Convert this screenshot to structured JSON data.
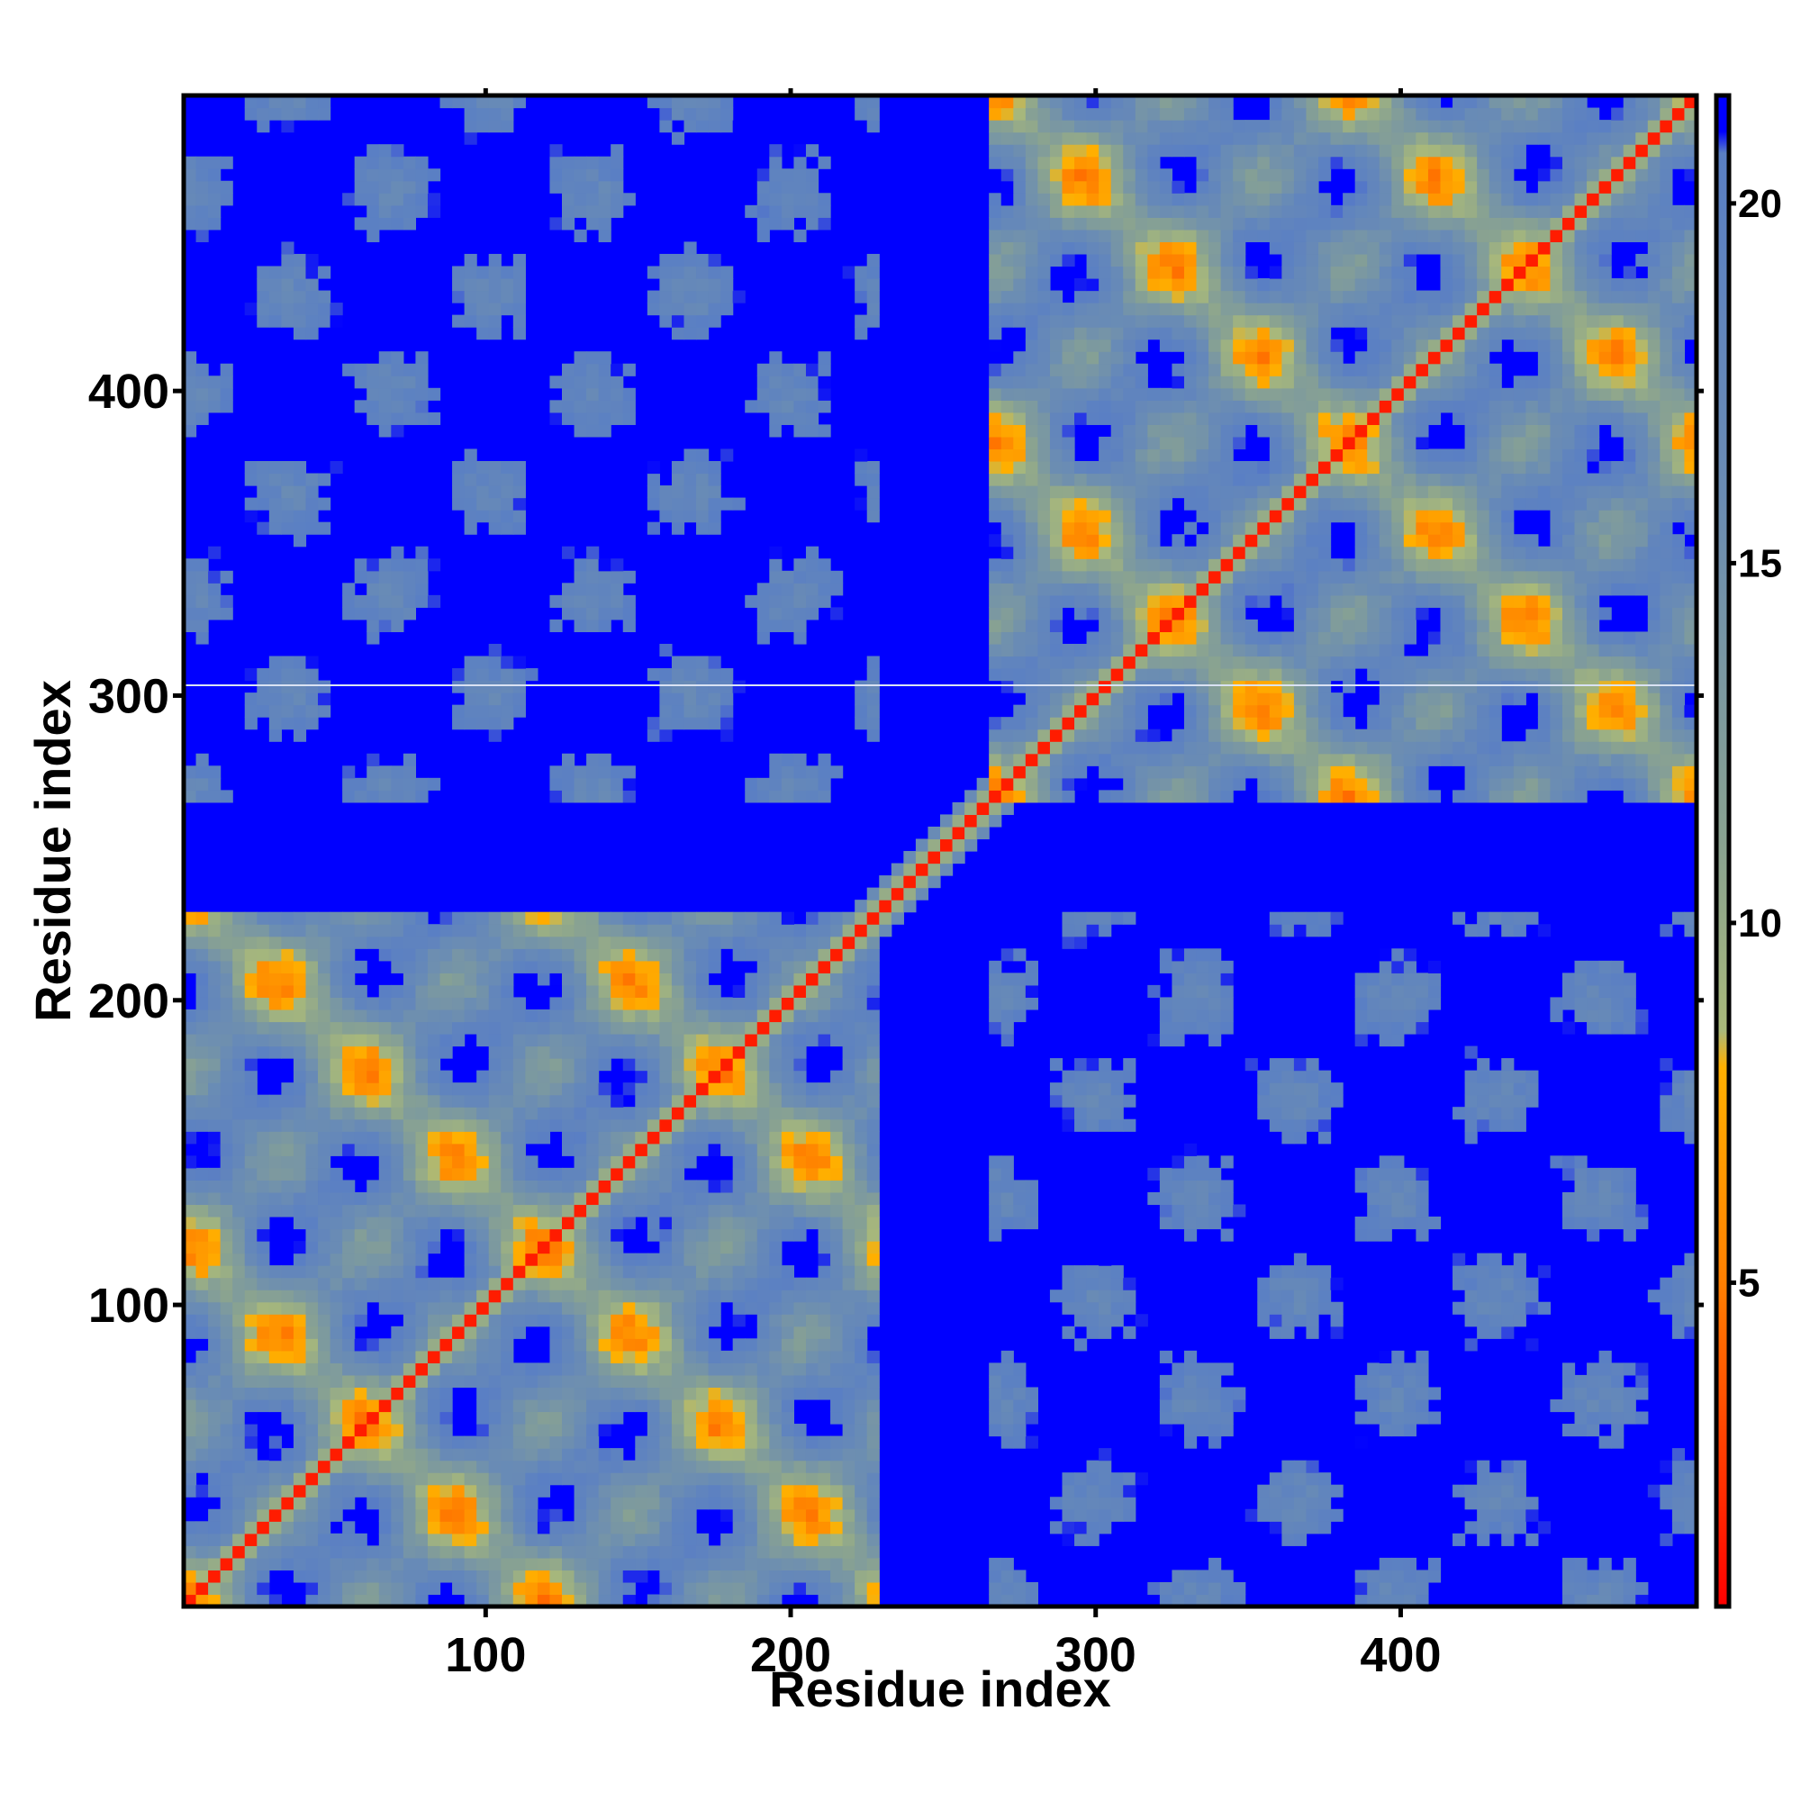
{
  "chart_data": {
    "type": "heatmap",
    "title": "",
    "xlabel": "Residue index",
    "ylabel": "Residue index",
    "xlim": [
      1,
      497
    ],
    "ylim": [
      1,
      497
    ],
    "x_ticks": [
      100,
      200,
      300,
      400
    ],
    "y_ticks": [
      100,
      200,
      300,
      400
    ],
    "colorbar": {
      "range": [
        0.5,
        21.5
      ],
      "ticks": [
        5,
        10,
        15,
        20
      ],
      "stops": [
        {
          "value": 0.5,
          "color": "#ff0000"
        },
        {
          "value": 5.0,
          "color": "#ff7f00"
        },
        {
          "value": 8.0,
          "color": "#ffb000"
        },
        {
          "value": 8.5,
          "color": "#a9b97a"
        },
        {
          "value": 11.0,
          "color": "#8aa390"
        },
        {
          "value": 16.0,
          "color": "#6a8cb4"
        },
        {
          "value": 20.7,
          "color": "#5a7fc4"
        },
        {
          "value": 21.0,
          "color": "#0000ff"
        }
      ]
    },
    "background_value": 21,
    "background_color": "#0000ff",
    "domains": [
      {
        "name": "",
        "start": 1,
        "end": 228
      },
      {
        "name": "",
        "start": 265,
        "end": 497
      }
    ],
    "grid": false,
    "legend": "right"
  }
}
